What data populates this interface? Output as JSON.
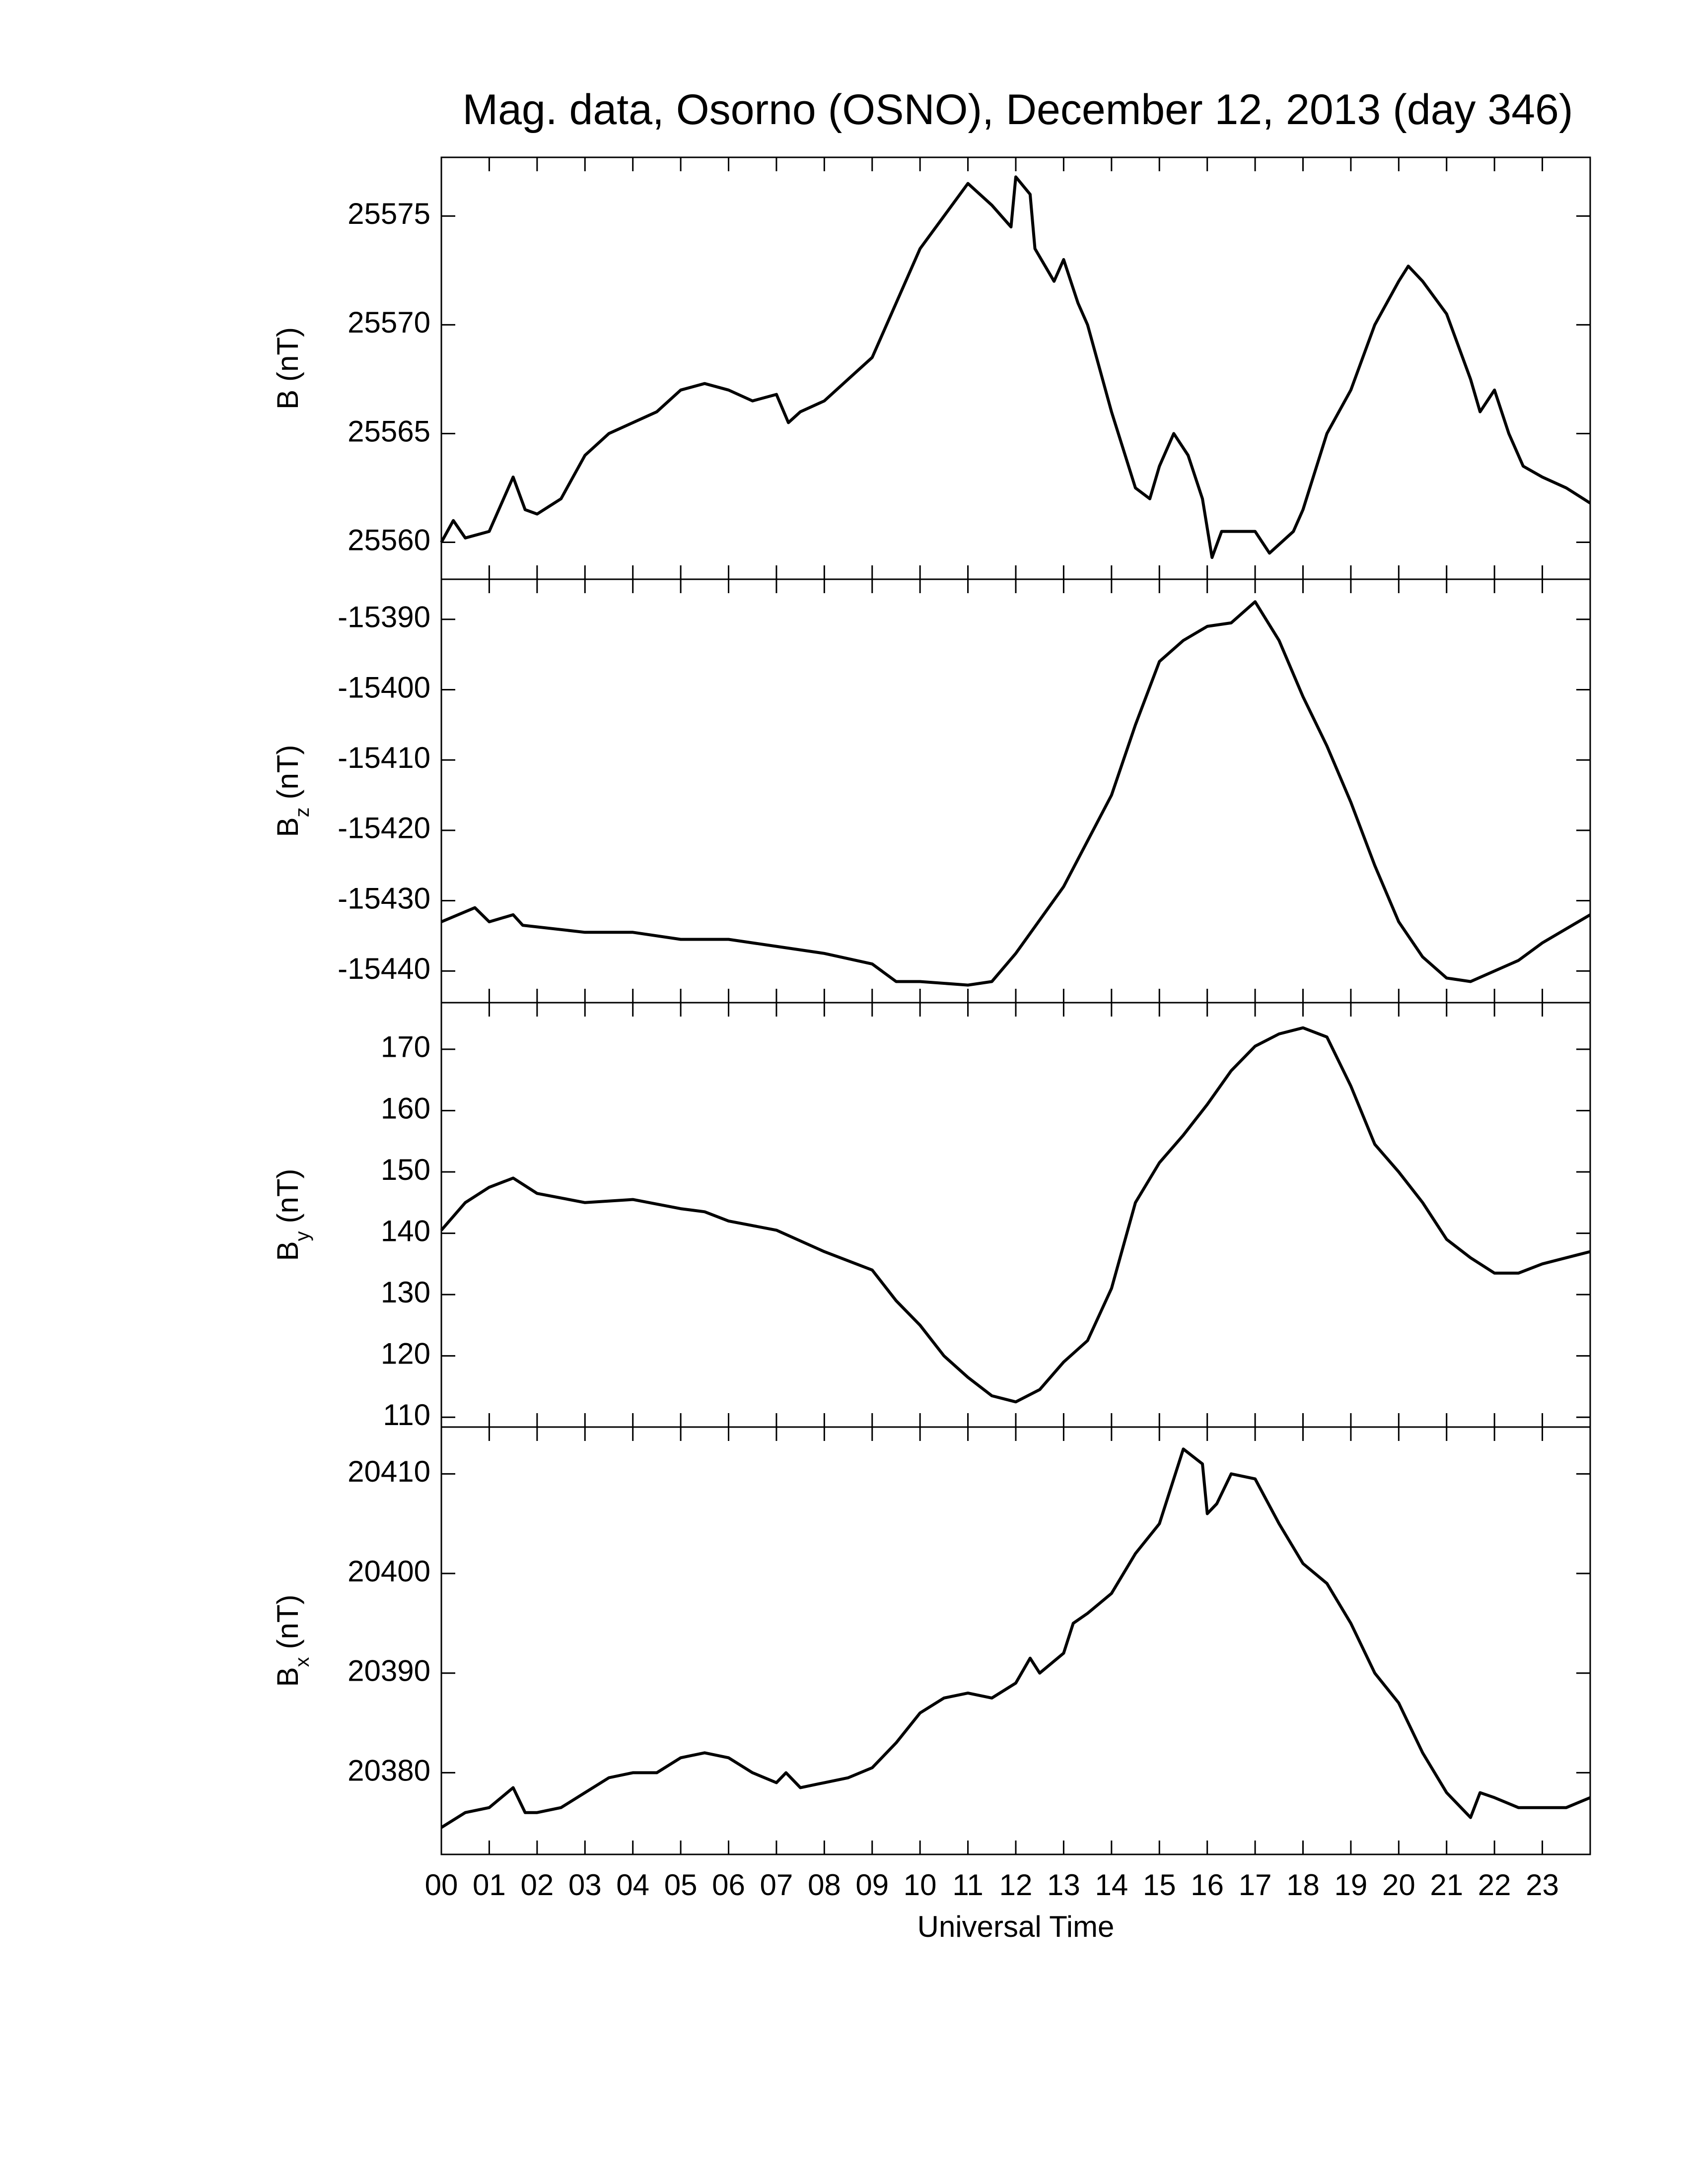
{
  "chart_data": [
    {
      "type": "line",
      "title": "Mag. data, Osorno (OSNO), December 12, 2013 (day 346)",
      "ylabel": "B",
      "ylabel_units": "(nT)",
      "color": "#000000",
      "ylim": [
        25558.3,
        25577.7
      ],
      "yticks": [
        25560,
        25565,
        25570,
        25575
      ],
      "x": [
        0,
        0.25,
        0.5,
        1,
        1.5,
        1.75,
        2,
        2.5,
        3,
        3.5,
        4,
        4.5,
        5,
        5.5,
        6,
        6.5,
        7,
        7.25,
        7.5,
        8,
        8.5,
        9,
        9.5,
        10,
        10.5,
        11,
        11.5,
        11.9,
        12,
        12.3,
        12.4,
        12.8,
        13,
        13.3,
        13.5,
        14,
        14.5,
        14.8,
        15,
        15.3,
        15.6,
        15.9,
        16.1,
        16.3,
        17,
        17.3,
        17.8,
        18,
        18.5,
        19,
        19.5,
        20,
        20.2,
        20.5,
        21,
        21.5,
        21.7,
        22,
        22.3,
        22.6,
        23,
        23.5,
        24
      ],
      "values": [
        25560,
        25561,
        25560.2,
        25560.5,
        25563,
        25561.5,
        25561.3,
        25562,
        25564,
        25565,
        25565.5,
        25566,
        25567,
        25567.3,
        25567,
        25566.5,
        25566.8,
        25565.5,
        25566,
        25566.5,
        25567.5,
        25568.5,
        25571,
        25573.5,
        25575,
        25576.5,
        25575.5,
        25574.5,
        25576.8,
        25576,
        25573.5,
        25572,
        25573,
        25571,
        25570,
        25566,
        25562.5,
        25562,
        25563.5,
        25565,
        25564,
        25562,
        25559.3,
        25560.5,
        25560.5,
        25559.5,
        25560.5,
        25561.5,
        25565,
        25567,
        25570,
        25572,
        25572.7,
        25572,
        25570.5,
        25567.5,
        25566,
        25567,
        25565,
        25563.5,
        25563,
        25562.5,
        25561.8
      ]
    },
    {
      "type": "line",
      "ylabel": "B",
      "ylabel_subscript": "z",
      "ylabel_units": "(nT)",
      "color": "#000000",
      "ylim": [
        -15444.5,
        -15384.3
      ],
      "yticks": [
        -15440,
        -15430,
        -15420,
        -15410,
        -15400,
        -15390
      ],
      "x": [
        0,
        0.7,
        1,
        1.5,
        1.7,
        3,
        4,
        5,
        6,
        7,
        8,
        9,
        9.5,
        10,
        11,
        11.5,
        12,
        13,
        14,
        14.5,
        15,
        15.5,
        16,
        16.5,
        17,
        17.5,
        18,
        18.5,
        19,
        19.5,
        20,
        20.5,
        21,
        21.5,
        22,
        22.5,
        23,
        24
      ],
      "values": [
        -15433,
        -15431,
        -15433,
        -15432,
        -15433.5,
        -15434.5,
        -15434.5,
        -15435.5,
        -15435.5,
        -15436.5,
        -15437.5,
        -15439,
        -15441.5,
        -15441.5,
        -15442,
        -15441.5,
        -15437.5,
        -15428,
        -15415,
        -15405,
        -15396,
        -15393,
        -15391,
        -15390.5,
        -15387.5,
        -15393,
        -15401,
        -15408,
        -15416,
        -15425,
        -15433,
        -15438,
        -15441,
        -15441.5,
        -15440,
        -15438.5,
        -15436,
        -15432
      ]
    },
    {
      "type": "line",
      "ylabel": "B",
      "ylabel_subscript": "y",
      "ylabel_units": "(nT)",
      "color": "#000000",
      "ylim": [
        108.4,
        177.6
      ],
      "yticks": [
        110,
        120,
        130,
        140,
        150,
        160,
        170
      ],
      "x": [
        0,
        0.5,
        1,
        1.5,
        2,
        3,
        4,
        5,
        5.5,
        6,
        7,
        8,
        9,
        9.5,
        10,
        10.5,
        11,
        11.5,
        12,
        12.5,
        13,
        13.5,
        14,
        14.5,
        15,
        15.5,
        16,
        16.5,
        17,
        17.5,
        18,
        18.5,
        19,
        19.5,
        20,
        20.5,
        21,
        21.5,
        22,
        22.5,
        23,
        24
      ],
      "values": [
        140.5,
        145,
        147.5,
        149,
        146.5,
        145,
        145.5,
        144,
        143.5,
        142,
        140.5,
        137,
        134,
        129,
        125,
        120,
        116.5,
        113.5,
        112.5,
        114.5,
        119,
        122.5,
        131,
        145,
        151.5,
        156,
        161,
        166.5,
        170.5,
        172.5,
        173.5,
        172,
        164,
        154.5,
        150,
        145,
        139,
        136,
        133.5,
        133.5,
        135,
        137
      ]
    },
    {
      "type": "line",
      "ylabel": "B",
      "ylabel_subscript": "x",
      "ylabel_units": "(nT)",
      "xlabel": "Universal Time",
      "color": "#000000",
      "ylim": [
        20371.8,
        20414.7
      ],
      "yticks": [
        20380,
        20390,
        20400,
        20410
      ],
      "xlim": [
        0,
        24
      ],
      "xticks": [
        {
          "value": 0,
          "label": "00"
        },
        {
          "value": 1,
          "label": "01"
        },
        {
          "value": 2,
          "label": "02"
        },
        {
          "value": 3,
          "label": "03"
        },
        {
          "value": 4,
          "label": "04"
        },
        {
          "value": 5,
          "label": "05"
        },
        {
          "value": 6,
          "label": "06"
        },
        {
          "value": 7,
          "label": "07"
        },
        {
          "value": 8,
          "label": "08"
        },
        {
          "value": 9,
          "label": "09"
        },
        10,
        11,
        12,
        13,
        14,
        15,
        16,
        17,
        18,
        19,
        20,
        21,
        22,
        23
      ],
      "x": [
        0,
        0.5,
        1,
        1.5,
        1.75,
        2,
        2.5,
        3,
        3.5,
        4,
        4.5,
        5,
        5.5,
        6,
        6.5,
        7,
        7.2,
        7.5,
        8,
        8.5,
        9,
        9.5,
        10,
        10.5,
        11,
        11.5,
        12,
        12.3,
        12.5,
        13,
        13.2,
        13.5,
        14,
        14.5,
        15,
        15.5,
        15.9,
        16,
        16.2,
        16.5,
        17,
        17.5,
        18,
        18.5,
        19,
        19.5,
        20,
        20.5,
        21,
        21.5,
        21.7,
        22,
        22.5,
        23,
        23.5,
        24
      ],
      "values": [
        20374.5,
        20376,
        20376.5,
        20378.5,
        20376,
        20376,
        20376.5,
        20378,
        20379.5,
        20380,
        20380,
        20381.5,
        20382,
        20381.5,
        20380,
        20379,
        20380,
        20378.5,
        20379,
        20379.5,
        20380.5,
        20383,
        20386,
        20387.5,
        20388,
        20387.5,
        20389,
        20391.5,
        20390,
        20392,
        20395,
        20396,
        20398,
        20402,
        20405,
        20412.5,
        20411,
        20406,
        20407,
        20410,
        20409.5,
        20405,
        20401,
        20399,
        20395,
        20390,
        20387,
        20382,
        20378,
        20375.5,
        20378,
        20377.5,
        20376.5,
        20376.5,
        20376.5,
        20377.5
      ]
    }
  ]
}
